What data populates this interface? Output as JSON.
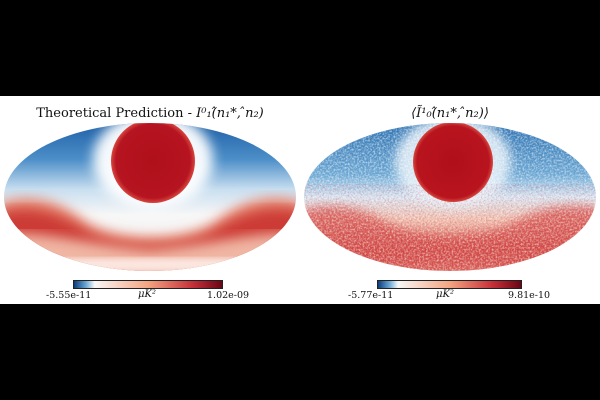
{
  "panels": [
    {
      "title_text": "Theoretical Prediction - ",
      "title_math": "I⁰₁(̂n₁*, ̂n₂)",
      "colorbar": {
        "min_label": "-5.55e-11",
        "unit": "μK²",
        "max_label": "1.02e-09"
      }
    },
    {
      "title_text": "",
      "title_math": "⟨Ĩ¹₀(̂n₁*, ̂n₂)⟩",
      "colorbar": {
        "min_label": "-5.77e-11",
        "unit": "μK²",
        "max_label": "9.81e-10"
      }
    }
  ],
  "colormap": {
    "low": "#0b3c7a",
    "mid": "#f7f7f7",
    "high": "#b8101c"
  }
}
